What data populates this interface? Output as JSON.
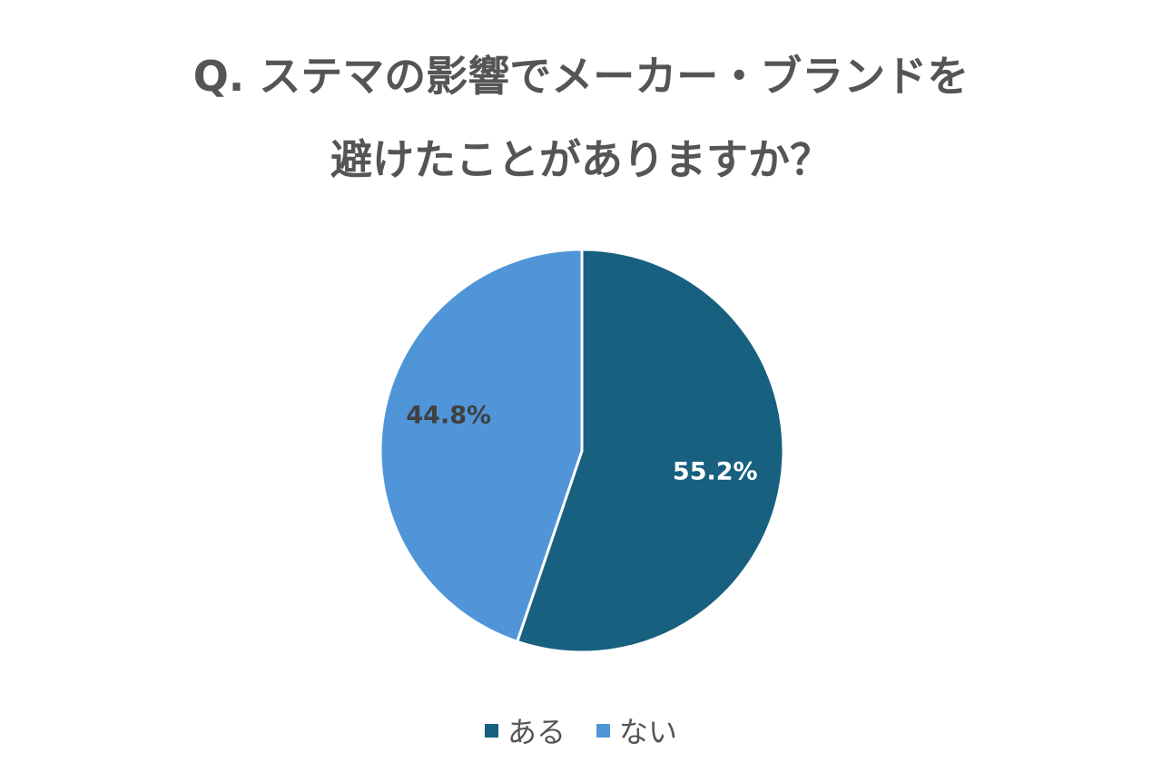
{
  "title": {
    "line1": "Q. ステマの影響でメーカー・ブランドを",
    "line2": "避けたことがありますか？"
  },
  "chart_data": {
    "type": "pie",
    "title": "Q. ステマの影響でメーカー・ブランドを避けたことがありますか？",
    "slices": [
      {
        "label": "ある",
        "value": 55.2,
        "value_label": "55.2%",
        "color": "#17607f",
        "label_color": "#ffffff"
      },
      {
        "label": "ない",
        "value": 44.8,
        "value_label": "44.8%",
        "color": "#4f95d8",
        "label_color": "#404040"
      }
    ],
    "legend_placement": "bottom"
  }
}
